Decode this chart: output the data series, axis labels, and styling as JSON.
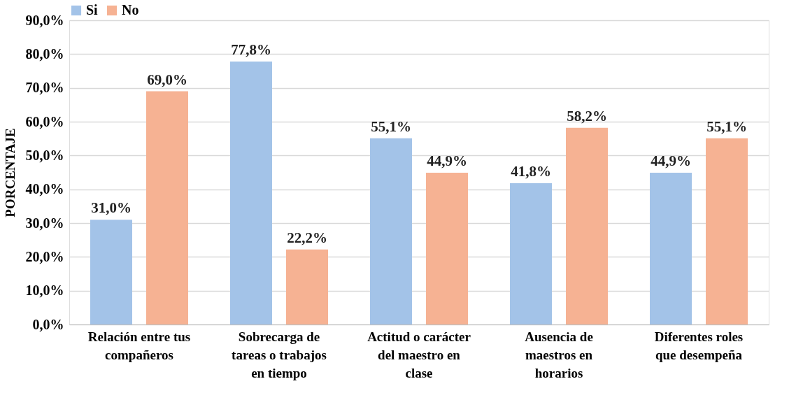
{
  "chart_data": {
    "type": "bar",
    "ylabel": "PORCENTAJE",
    "categories": [
      "Relación entre tus compañeros",
      "Sobrecarga de tareas o trabajos en tiempo",
      "Actitud o carácter del maestro en clase",
      "Ausencia de maestros en horarios",
      "Diferentes roles que desempeña"
    ],
    "series": [
      {
        "name": "Si",
        "color": "#a3c3e8",
        "values": [
          31.0,
          77.8,
          55.1,
          41.8,
          44.9
        ],
        "value_labels": [
          "31,0%",
          "77,8%",
          "55,1%",
          "41,8%",
          "44,9%"
        ]
      },
      {
        "name": "No",
        "color": "#f6b293",
        "values": [
          69.0,
          22.2,
          44.9,
          58.2,
          55.1
        ],
        "value_labels": [
          "69,0%",
          "22,2%",
          "44,9%",
          "58,2%",
          "55,1%"
        ]
      }
    ],
    "ylim": [
      0,
      90
    ],
    "yticks": [
      {
        "value": 0,
        "label": "0,0%"
      },
      {
        "value": 10,
        "label": "10,0%"
      },
      {
        "value": 20,
        "label": "20,0%"
      },
      {
        "value": 30,
        "label": "30,0%"
      },
      {
        "value": 40,
        "label": "40,0%"
      },
      {
        "value": 50,
        "label": "50,0%"
      },
      {
        "value": 60,
        "label": "60,0%"
      },
      {
        "value": 70,
        "label": "70,0%"
      },
      {
        "value": 80,
        "label": "80,0%"
      },
      {
        "value": 90,
        "label": "90,0%"
      }
    ],
    "grid": "y",
    "legend": "top"
  }
}
